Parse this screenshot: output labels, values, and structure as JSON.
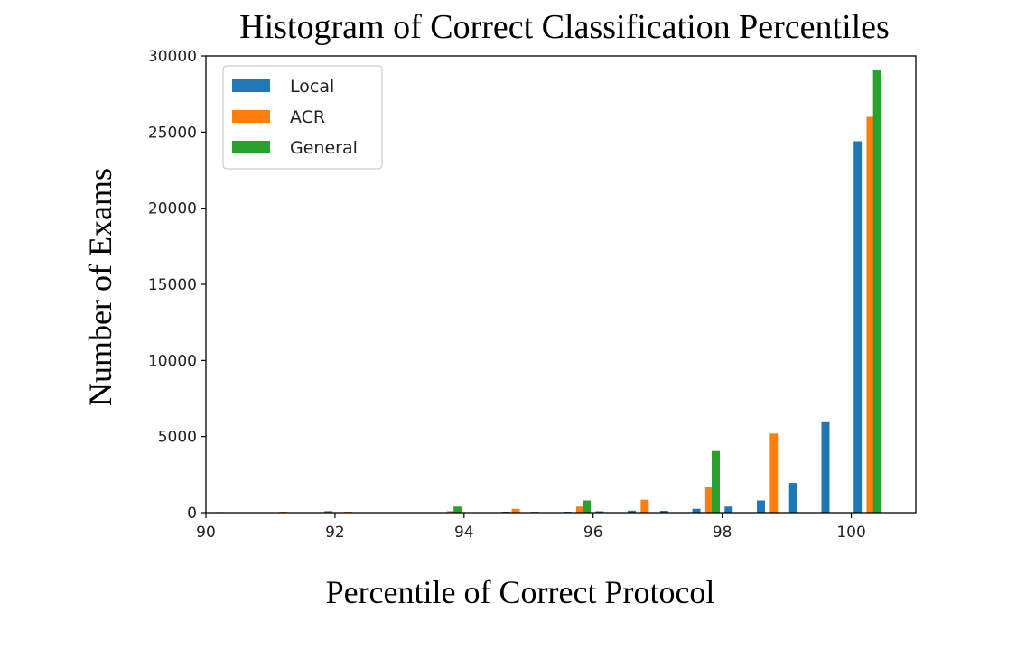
{
  "chart_data": {
    "type": "bar",
    "title": "Histogram of Correct Classification Percentiles",
    "xlabel": "Percentile of Correct Protocol",
    "ylabel": "Number of Exams",
    "xlim": [
      90,
      101
    ],
    "ylim": [
      0,
      30000
    ],
    "xticks": [
      "90",
      "92",
      "94",
      "96",
      "98",
      "100"
    ],
    "yticks": [
      "0",
      "5000",
      "10000",
      "15000",
      "20000",
      "25000",
      "30000"
    ],
    "grid": false,
    "legend_position": "top-left",
    "series": [
      {
        "name": "Local",
        "color": "#1f77b4",
        "x": [
          94.65,
          95.1,
          95.6,
          96.1,
          96.6,
          97.1,
          97.6,
          98.1,
          98.6,
          99.1,
          99.6,
          100.1
        ],
        "values": [
          60,
          50,
          60,
          90,
          130,
          120,
          250,
          400,
          800,
          1950,
          6000,
          24400
        ]
      },
      {
        "name": "ACR",
        "color": "#ff7f0e",
        "x": [
          90.2,
          91.2,
          92.2,
          93.8,
          94.8,
          95.8,
          96.8,
          97.8,
          98.8,
          100.3
        ],
        "values": [
          40,
          60,
          60,
          100,
          250,
          400,
          850,
          1700,
          5200,
          26000
        ]
      },
      {
        "name": "General",
        "color": "#2ca02c",
        "x": [
          91.9,
          93.9,
          95.9,
          97.9,
          100.4
        ],
        "values": [
          100,
          400,
          800,
          4050,
          29100
        ]
      }
    ]
  }
}
